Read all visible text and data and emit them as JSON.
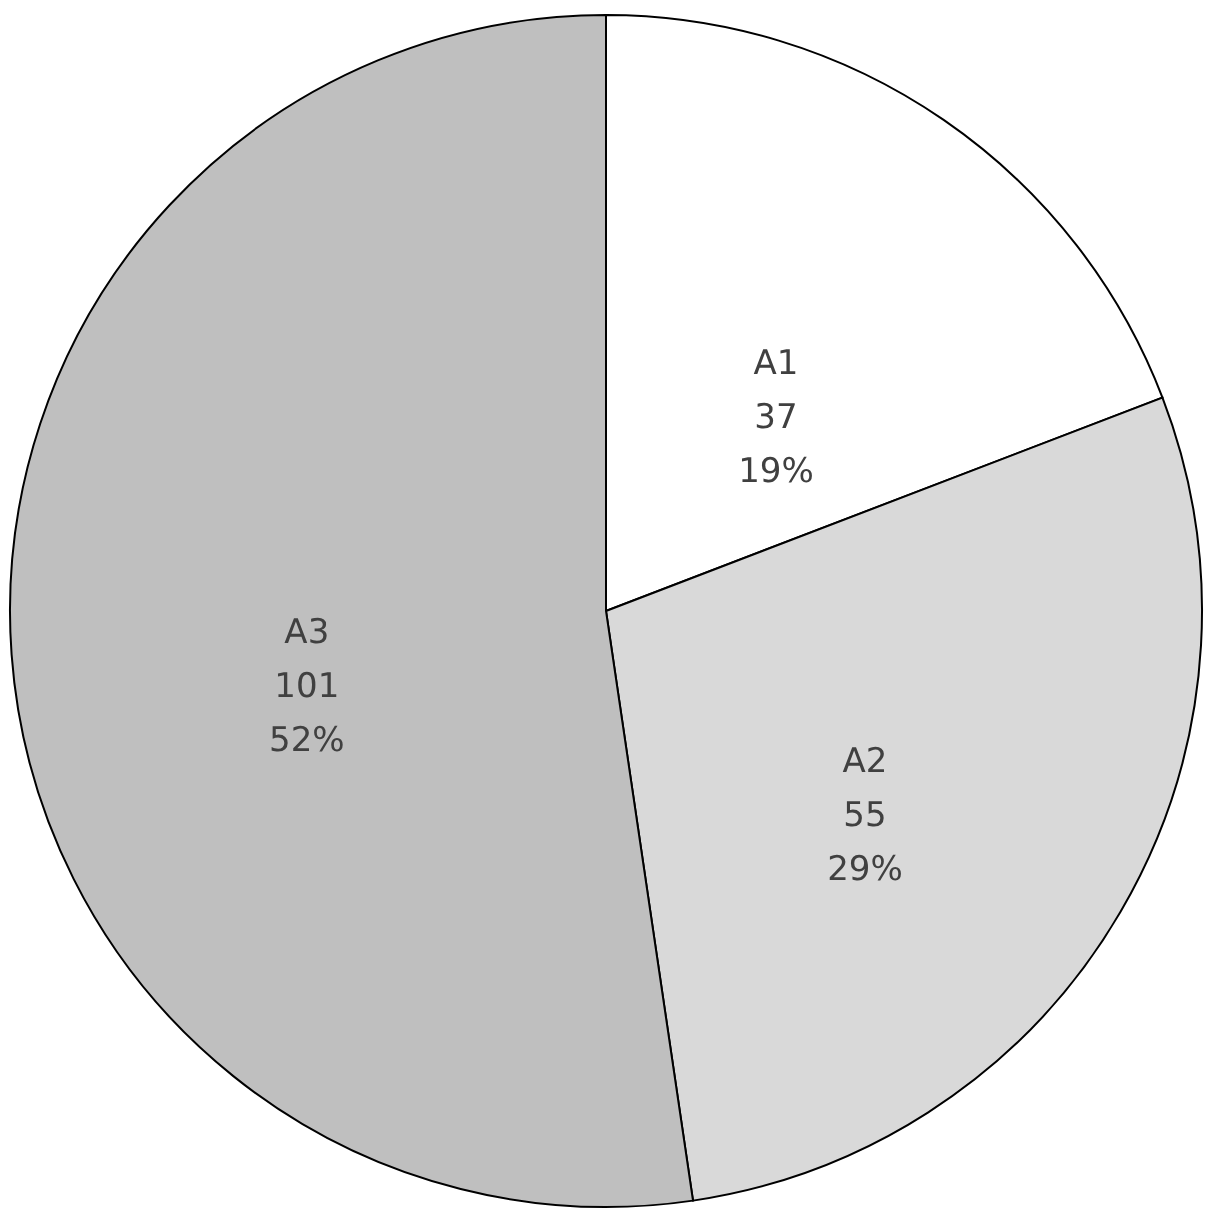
{
  "chart_data": {
    "type": "pie",
    "categories": [
      "A1",
      "A2",
      "A3"
    ],
    "values": [
      37,
      55,
      101
    ],
    "value_labels": [
      "37\n19%",
      "55\n29%",
      "101\n52%"
    ],
    "colors": [
      "#ffffff",
      "#d9d9d9",
      "#bfbfbf"
    ]
  }
}
